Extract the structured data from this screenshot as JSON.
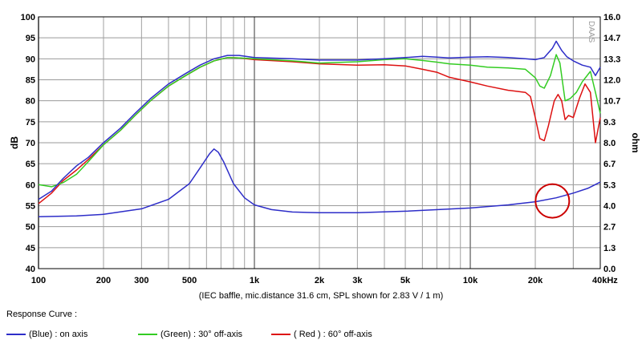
{
  "chart_data": {
    "type": "line",
    "x_scale": "log",
    "x_ticks": [
      100,
      200,
      300,
      500,
      1000,
      2000,
      3000,
      5000,
      10000,
      20000,
      40000
    ],
    "x_tick_labels": [
      "100",
      "200",
      "300",
      "500",
      "1k",
      "2k",
      "3k",
      "5k",
      "10k",
      "20k",
      "40kHz"
    ],
    "xlim": [
      100,
      40000
    ],
    "ylabel": "dB",
    "ylim": [
      40,
      100
    ],
    "y_ticks": [
      40,
      45,
      50,
      55,
      60,
      65,
      70,
      75,
      80,
      85,
      90,
      95,
      100
    ],
    "y2label": "ohm",
    "y2lim": [
      0,
      16
    ],
    "y2_tick_labels": [
      "0.0",
      "1.3",
      "2.7",
      "4.0",
      "5.3",
      "6.7",
      "8.0",
      "9.3",
      "10.7",
      "12.0",
      "13.3",
      "14.7",
      "16.0"
    ],
    "caption": "(IEC baffle, mic.distance 31.6 cm, SPL shown for 2.83 V / 1 m)",
    "watermark": "DAAS",
    "grid": true,
    "series": [
      {
        "name": "(Blue)  : on axis",
        "color": "#2d2dc8",
        "axis": "left",
        "x": [
          100,
          115,
          130,
          150,
          170,
          200,
          240,
          280,
          330,
          400,
          480,
          560,
          650,
          750,
          850,
          1000,
          1500,
          2000,
          3000,
          4000,
          5000,
          6000,
          7000,
          8000,
          10000,
          12000,
          15000,
          18000,
          20000,
          22000,
          24000,
          25000,
          26500,
          28000,
          30000,
          33000,
          36000,
          38000,
          40000
        ],
        "y": [
          56.5,
          58.5,
          61.5,
          64.5,
          66.5,
          70,
          73.5,
          77,
          80.5,
          84,
          86.5,
          88.5,
          90,
          90.8,
          90.8,
          90.3,
          90.0,
          89.7,
          89.7,
          90.0,
          90.3,
          90.6,
          90.4,
          90.2,
          90.4,
          90.5,
          90.3,
          90.0,
          89.8,
          90.3,
          92.5,
          94.2,
          92.0,
          90.5,
          89.5,
          88.5,
          88.0,
          86.0,
          88.0
        ]
      },
      {
        "name": "(Green) : 30° off-axis",
        "color": "#33cc22",
        "axis": "left",
        "x": [
          100,
          115,
          130,
          150,
          170,
          200,
          240,
          280,
          330,
          400,
          480,
          560,
          650,
          750,
          850,
          1000,
          1500,
          2000,
          3000,
          4000,
          5000,
          6000,
          7000,
          8000,
          10000,
          12000,
          15000,
          18000,
          20000,
          21000,
          22000,
          23500,
          25000,
          26000,
          27500,
          29000,
          31000,
          33000,
          36000,
          38000,
          40000
        ],
        "y": [
          60,
          59.5,
          60.5,
          62.5,
          65.5,
          69.5,
          73,
          76.5,
          80,
          83.5,
          86,
          88,
          89.5,
          90.3,
          90.2,
          90.0,
          89.5,
          89.0,
          89.3,
          89.8,
          90.0,
          89.6,
          89.2,
          88.8,
          88.5,
          88.0,
          87.8,
          87.5,
          85.5,
          83.5,
          83.0,
          86.0,
          91.0,
          89.0,
          80.0,
          80.5,
          82.0,
          84.5,
          87.0,
          82.0,
          77.0
        ]
      },
      {
        "name": "( Red ) : 60° off-axis",
        "color": "#dd1111",
        "axis": "left",
        "x": [
          100,
          115,
          130,
          150,
          170,
          200,
          240,
          280,
          330,
          400,
          480,
          560,
          650,
          750,
          850,
          1000,
          1500,
          2000,
          3000,
          4000,
          5000,
          6000,
          7000,
          8000,
          10000,
          12000,
          15000,
          18000,
          19000,
          20000,
          21000,
          22000,
          23000,
          24500,
          25500,
          26500,
          27500,
          28500,
          30000,
          32000,
          34000,
          36000,
          38000,
          40000
        ],
        "y": [
          55.5,
          58,
          61,
          63.5,
          66,
          69.5,
          73,
          76.5,
          80,
          83.5,
          86,
          88,
          89.5,
          90.3,
          90.2,
          89.8,
          89.3,
          88.8,
          88.5,
          88.6,
          88.3,
          87.5,
          86.8,
          85.6,
          84.5,
          83.5,
          82.5,
          82.0,
          81.0,
          76.0,
          71.0,
          70.5,
          74.0,
          80.0,
          81.5,
          80.0,
          75.5,
          76.5,
          76.0,
          80.5,
          84.0,
          82.0,
          70.0,
          76.0
        ]
      },
      {
        "name": "Impedance",
        "color": "#2d2dc8",
        "axis": "right",
        "x": [
          100,
          150,
          200,
          300,
          400,
          500,
          560,
          620,
          650,
          680,
          720,
          800,
          900,
          1000,
          1200,
          1500,
          2000,
          3000,
          5000,
          10000,
          15000,
          20000,
          25000,
          30000,
          35000,
          40000
        ],
        "y": [
          3.3,
          3.35,
          3.45,
          3.8,
          4.4,
          5.4,
          6.4,
          7.3,
          7.6,
          7.4,
          6.8,
          5.4,
          4.5,
          4.05,
          3.75,
          3.6,
          3.55,
          3.55,
          3.65,
          3.85,
          4.05,
          4.25,
          4.5,
          4.8,
          5.1,
          5.5
        ]
      }
    ]
  },
  "legend": {
    "title": "Response Curve :",
    "items": [
      {
        "label": "(Blue)  : on axis",
        "color": "#2d2dc8"
      },
      {
        "label": "(Green) : 30° off-axis",
        "color": "#33cc22"
      },
      {
        "label": "( Red ) : 60° off-axis",
        "color": "#dd1111"
      }
    ]
  },
  "annotation": {
    "type": "circle",
    "color": "#cc0000",
    "x": 24000,
    "y2": 4.3
  }
}
